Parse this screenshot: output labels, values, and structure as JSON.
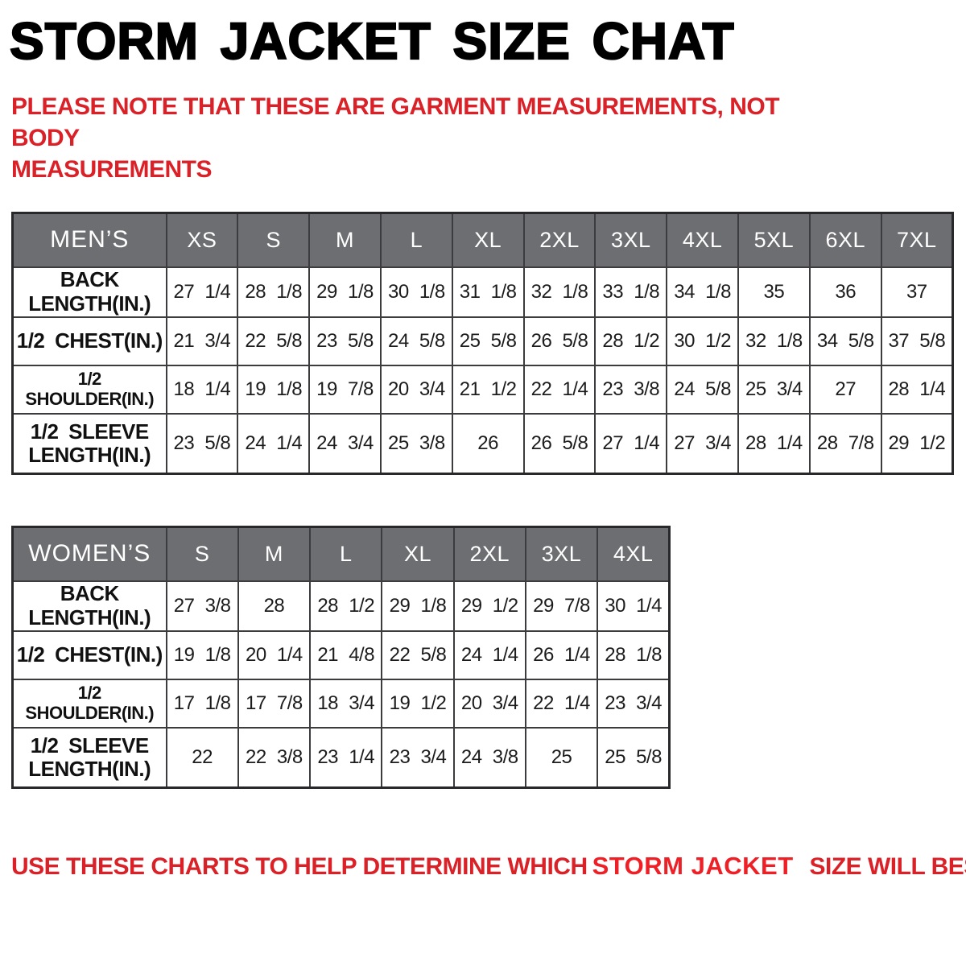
{
  "page": {
    "title": "STORM JACKET SIZE CHAT",
    "note_top": "PLEASE NOTE THAT THESE ARE GARMENT MEASUREMENTS, NOT BODY\nMEASUREMENTS",
    "note_bottom_prefix": "USE THESE CHARTS TO HELP DETERMINE WHICH",
    "note_bottom_highlight": "STORM JACKET",
    "note_bottom_suffix": " SIZE WILL BEST FIT YOU."
  },
  "colors": {
    "note_red": "#da2128",
    "highlight_red": "#ef1f26",
    "header_grey": "#6d6e71",
    "border_dark": "#3c3c3e",
    "text_dark": "#1c1c1c"
  },
  "tables": {
    "mens": {
      "name": "MEN’S",
      "sizes": [
        "XS",
        "S",
        "M",
        "L",
        "XL",
        "2XL",
        "3XL",
        "4XL",
        "5XL",
        "6XL",
        "7XL"
      ],
      "rows": [
        {
          "label": "BACK\nLENGTH(IN.)",
          "values": [
            "27 1/4",
            "28 1/8",
            "29 1/8",
            "30 1/8",
            "31 1/8",
            "32 1/8",
            "33 1/8",
            "34 1/8",
            "35",
            "36",
            "37"
          ]
        },
        {
          "label": "1/2 CHEST(IN.)",
          "values": [
            "21 3/4",
            "22 5/8",
            "23 5/8",
            "24 5/8",
            "25 5/8",
            "26 5/8",
            "28 1/2",
            "30 1/2",
            "32 1/8",
            "34 5/8",
            "37 5/8"
          ]
        },
        {
          "label": "1/2 SHOULDER(IN.)",
          "values": [
            "18 1/4",
            "19 1/8",
            "19 7/8",
            "20 3/4",
            "21 1/2",
            "22 1/4",
            "23 3/8",
            "24 5/8",
            "25 3/4",
            "27",
            "28 1/4"
          ]
        },
        {
          "label": "1/2 SLEEVE\nLENGTH(IN.)",
          "values": [
            "23 5/8",
            "24 1/4",
            "24 3/4",
            "25 3/8",
            "26",
            "26 5/8",
            "27 1/4",
            "27 3/4",
            "28 1/4",
            "28 7/8",
            "29 1/2"
          ]
        }
      ]
    },
    "womens": {
      "name": "WOMEN’S",
      "sizes": [
        "S",
        "M",
        "L",
        "XL",
        "2XL",
        "3XL",
        "4XL"
      ],
      "rows": [
        {
          "label": "BACK\nLENGTH(IN.)",
          "values": [
            "27 3/8",
            "28",
            "28 1/2",
            "29 1/8",
            "29 1/2",
            "29 7/8",
            "30 1/4"
          ]
        },
        {
          "label": "1/2 CHEST(IN.)",
          "values": [
            "19 1/8",
            "20 1/4",
            "21 4/8",
            "22 5/8",
            "24 1/4",
            "26 1/4",
            "28 1/8"
          ]
        },
        {
          "label": "1/2 SHOULDER(IN.)",
          "values": [
            "17 1/8",
            "17 7/8",
            "18 3/4",
            "19 1/2",
            "20 3/4",
            "22 1/4",
            "23 3/4"
          ]
        },
        {
          "label": "1/2 SLEEVE\nLENGTH(IN.)",
          "values": [
            "22",
            "22 3/8",
            "23 1/4",
            "23 3/4",
            "24 3/8",
            "25",
            "25 5/8"
          ]
        }
      ]
    }
  }
}
